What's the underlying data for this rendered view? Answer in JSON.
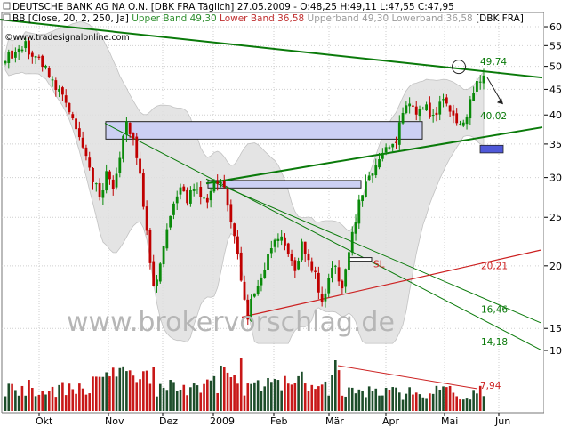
{
  "header": {
    "line1": "DEUTSCHE BANK AG NA O.N. [DBK FRA  Täglich] 27.05.2009 - O:48,25 H:49,11 L:47,55 C:47,95",
    "line2_prefix": "BB [Close, 20, 2, 250, Ja]",
    "line2_upper": "Upper Band 49,30",
    "line2_lower": "Lower Band 36,58",
    "line2_grey": "Upperband 49,30  Lowerband 36,58",
    "line2_suffix": "[DBK FRA]",
    "site": "©www.tradesignalonline.com",
    "watermark": "www.brokervorschlag.de"
  },
  "colors": {
    "candle_up": "#0a8a0a",
    "candle_down": "#c00000",
    "trend_green": "#0a7a0a",
    "trend_red": "#cc2020",
    "zone_fill": "#ccd0f4",
    "target_fill": "#4f58d8",
    "band_fill": "#e0e0e0",
    "upper_band_label": "#2f8f2f",
    "lower_band_label": "#c03030"
  },
  "chart_data": {
    "type": "candlestick",
    "ylim": [
      13.5,
      62
    ],
    "y_scale": "log",
    "y_ticks": [
      10,
      15,
      20,
      25,
      30,
      35,
      40,
      45,
      50,
      55,
      60
    ],
    "x_labels": [
      "Okt",
      "Nov",
      "Dez",
      "2009",
      "Feb",
      "Mär",
      "Apr",
      "Mai",
      "Jun"
    ],
    "bollinger": {
      "period": 20,
      "std": 2,
      "upper_last": 49.3,
      "lower_last": 36.58
    },
    "levels": [
      {
        "label": "49,74",
        "value": 49.74,
        "color": "#0a7a0a"
      },
      {
        "label": "40,02",
        "value": 40.02,
        "color": "#0a7a0a"
      },
      {
        "label": "20,21",
        "value": 20.21,
        "color": "#cc2020"
      },
      {
        "label": "16,46",
        "value": 16.46,
        "color": "#0a7a0a"
      },
      {
        "label": "14,18",
        "value": 14.18,
        "color": "#0a7a0a"
      }
    ],
    "volume_trend_label": "7,94",
    "stop_label": "SL",
    "last_close": 47.95
  }
}
